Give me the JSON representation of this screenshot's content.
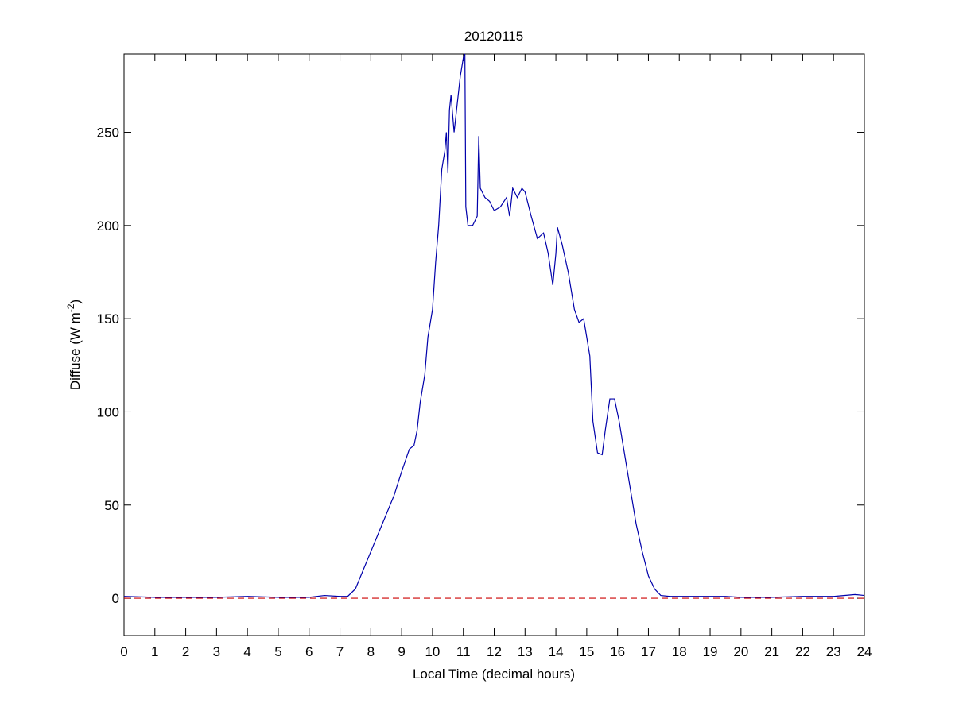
{
  "chart_data": {
    "type": "line",
    "title": "20120115",
    "xlabel": "Local Time (decimal hours)",
    "ylabel": {
      "text": "Diffuse (W m",
      "superscript": "-2",
      "suffix": ")"
    },
    "x": [
      0,
      1,
      2,
      3,
      4,
      5,
      6,
      6.5,
      7,
      7.25,
      7.5,
      7.75,
      8,
      8.25,
      8.5,
      8.75,
      9,
      9.25,
      9.4,
      9.5,
      9.6,
      9.75,
      9.85,
      10,
      10.1,
      10.2,
      10.3,
      10.4,
      10.45,
      10.5,
      10.55,
      10.6,
      10.7,
      10.8,
      10.9,
      11,
      11.05,
      11.08,
      11.15,
      11.3,
      11.45,
      11.5,
      11.55,
      11.7,
      11.85,
      12,
      12.2,
      12.4,
      12.5,
      12.6,
      12.75,
      12.9,
      13,
      13.2,
      13.4,
      13.6,
      13.75,
      13.9,
      14,
      14.05,
      14.2,
      14.4,
      14.6,
      14.75,
      14.9,
      15,
      15.1,
      15.2,
      15.35,
      15.5,
      15.6,
      15.75,
      15.9,
      16.05,
      16.2,
      16.4,
      16.6,
      16.8,
      17,
      17.2,
      17.4,
      17.7,
      18,
      19,
      19.5,
      20,
      21,
      22,
      23,
      23.7,
      24
    ],
    "series": [
      {
        "name": "Diffuse",
        "color": "#0000aa",
        "values": [
          1,
          0.5,
          0.5,
          0.5,
          1,
          0.5,
          0.5,
          1.5,
          1,
          1,
          5,
          15,
          25,
          35,
          45,
          55,
          68,
          80,
          82,
          90,
          105,
          120,
          140,
          155,
          180,
          200,
          230,
          240,
          250,
          228,
          262,
          270,
          250,
          265,
          280,
          290,
          292,
          210,
          200,
          200,
          205,
          248,
          220,
          215,
          213,
          208,
          210,
          215,
          205,
          220,
          215,
          220,
          218,
          205,
          193,
          196,
          185,
          168,
          185,
          199,
          190,
          175,
          155,
          148,
          150,
          140,
          130,
          95,
          78,
          77,
          90,
          107,
          107,
          95,
          80,
          60,
          40,
          25,
          12,
          5,
          1.5,
          1,
          1,
          1,
          1,
          0.5,
          0.5,
          1,
          1,
          2,
          1.5
        ]
      }
    ],
    "reference_line": {
      "value": 0,
      "color": "#cc0000",
      "dashed": true
    },
    "xlim": [
      0,
      24
    ],
    "xticks": [
      0,
      1,
      2,
      3,
      4,
      5,
      6,
      7,
      8,
      9,
      10,
      11,
      12,
      13,
      14,
      15,
      16,
      17,
      18,
      19,
      20,
      21,
      22,
      23,
      24
    ],
    "ylim": [
      -20,
      292
    ],
    "yticks": [
      0,
      50,
      100,
      150,
      200,
      250
    ],
    "grid": false
  }
}
